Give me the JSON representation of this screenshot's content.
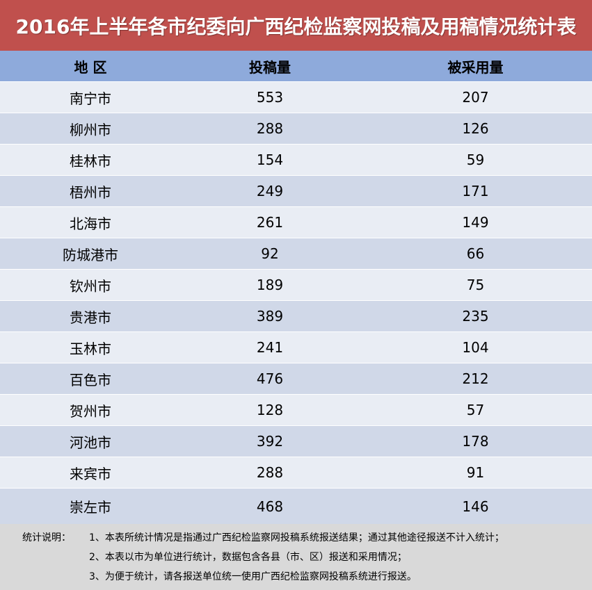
{
  "title": "2016年上半年各市纪委向广西纪检监察网投稿及用稿情况统计表",
  "headers": [
    "地  区",
    "投稿量",
    "被采用量"
  ],
  "rows": [
    [
      "南宁市",
      "553",
      "207"
    ],
    [
      "柳州市",
      "288",
      "126"
    ],
    [
      "桂林市",
      "154",
      "59"
    ],
    [
      "梧州市",
      "249",
      "171"
    ],
    [
      "北海市",
      "261",
      "149"
    ],
    [
      "防城港市",
      "92",
      "66"
    ],
    [
      "钦州市",
      "189",
      "75"
    ],
    [
      "贵港市",
      "389",
      "235"
    ],
    [
      "玉林市",
      "241",
      "104"
    ],
    [
      "百色市",
      "476",
      "212"
    ],
    [
      "贺州市",
      "128",
      "57"
    ],
    [
      "河池市",
      "392",
      "178"
    ],
    [
      "来宾市",
      "288",
      "91"
    ],
    [
      "崇左市",
      "468",
      "146"
    ]
  ],
  "notes": {
    "prefix": "统计说明：",
    "lines": [
      "1、本表所统计情况是指通过广西纪检监察网投稿系统报送结果；通过其他途径报送不计入统计；",
      "2、本表以市为单位进行统计，数据包含各县（市、区）报送和采用情况；",
      "3、为便于统计，请各报送单位统一使用广西纪检监察网投稿系统进行报送。"
    ]
  },
  "colors": {
    "title_bg": "#c0504d",
    "header_bg": "#8eaadb",
    "row_light": "#e9edf4",
    "row_dark": "#d0d8e8",
    "notes_bg": "#d9d9d9"
  }
}
